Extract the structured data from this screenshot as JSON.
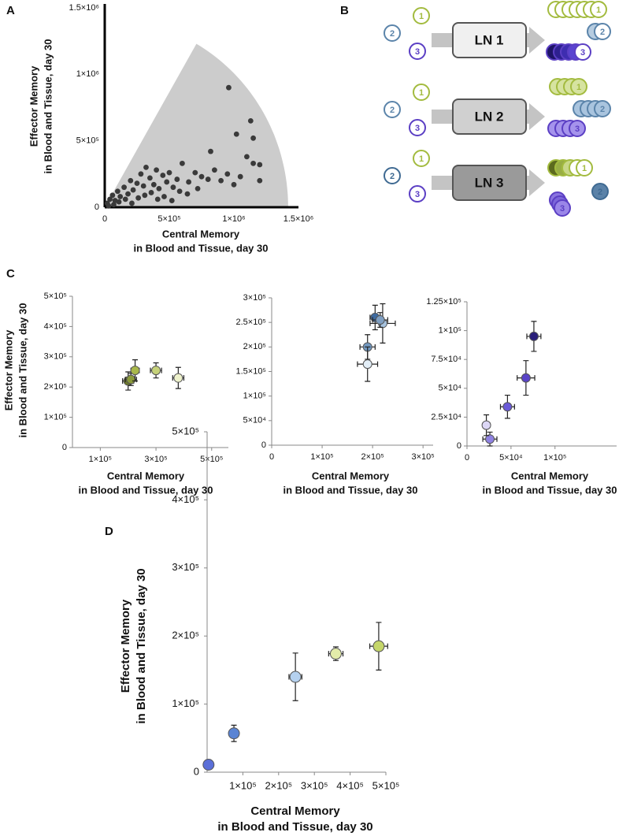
{
  "panel_labels": [
    "A",
    "B",
    "C",
    "D"
  ],
  "chart_data": [
    {
      "type": "scatter",
      "color": "#3a3a3a",
      "xlabel": [
        "Central Memory",
        "in Blood and Tissue, day 30"
      ],
      "ylabel": [
        "Effector Memory",
        "in Blood and Tissue, day 30"
      ],
      "shaded_region": {
        "radius": 1420000,
        "angle": 60,
        "color": "#cccccc"
      },
      "xlim": [
        0,
        1500000
      ],
      "ylim": [
        0,
        1500000
      ],
      "xticks": [
        0,
        {
          "value": 500000,
          "label": "5×10⁵"
        },
        {
          "value": 1000000,
          "label": "1×10⁶"
        },
        {
          "value": 1500000,
          "label": "1.5×10⁶"
        }
      ],
      "yticks": [
        0,
        {
          "value": 500000,
          "label": "5×10⁵"
        },
        {
          "value": 1000000,
          "label": "1×10⁶"
        },
        {
          "value": 1500000,
          "label": "1.5×10⁶"
        }
      ],
      "x": [
        20000,
        40000,
        60000,
        80000,
        100000,
        120000,
        150000,
        180000,
        200000,
        220000,
        250000,
        280000,
        300000,
        320000,
        350000,
        380000,
        400000,
        420000,
        450000,
        480000,
        500000,
        530000,
        560000,
        600000,
        650000,
        700000,
        750000,
        800000,
        850000,
        900000,
        950000,
        1000000,
        1050000,
        1100000,
        1150000,
        1200000,
        30000,
        70000,
        110000,
        160000,
        210000,
        260000,
        310000,
        360000,
        410000,
        460000,
        520000,
        580000,
        640000,
        720000,
        820000,
        1020000,
        1130000,
        1150000,
        960000,
        1200000
      ],
      "values": [
        30000,
        60000,
        90000,
        50000,
        120000,
        80000,
        150000,
        100000,
        200000,
        130000,
        180000,
        250000,
        160000,
        300000,
        220000,
        170000,
        280000,
        140000,
        240000,
        190000,
        260000,
        150000,
        210000,
        330000,
        190000,
        260000,
        230000,
        210000,
        280000,
        200000,
        250000,
        170000,
        230000,
        380000,
        330000,
        200000,
        10000,
        20000,
        40000,
        60000,
        30000,
        70000,
        90000,
        110000,
        60000,
        80000,
        50000,
        120000,
        100000,
        140000,
        420000,
        550000,
        650000,
        520000,
        900000,
        320000
      ]
    },
    {
      "type": "errorbar",
      "xlabel": [
        "Central Memory",
        "in Blood and Tissue, day 30"
      ],
      "ylabel": [
        "Effector Memory",
        "in Blood and Tissue, day 30"
      ],
      "xlim": [
        0,
        560000
      ],
      "ylim": [
        0,
        500000
      ],
      "xticks": [
        {
          "value": 100000,
          "label": "1×10⁵"
        },
        {
          "value": 300000,
          "label": "3×10⁵"
        },
        {
          "value": 500000,
          "label": "5×10⁵"
        }
      ],
      "yticks": [
        0,
        {
          "value": 100000,
          "label": "1×10⁵"
        },
        {
          "value": 200000,
          "label": "2×10⁵"
        },
        {
          "value": 300000,
          "label": "3×10⁵"
        },
        {
          "value": 400000,
          "label": "4×10⁵"
        },
        {
          "value": 500000,
          "label": "5×10⁵"
        }
      ],
      "series": [
        {
          "x": [
            200000,
            210000,
            225000,
            300000,
            380000
          ],
          "values": [
            220000,
            225000,
            255000,
            255000,
            230000
          ],
          "xerr": [
            20000,
            20000,
            15000,
            20000,
            20000
          ],
          "yerr": [
            30000,
            20000,
            35000,
            25000,
            35000
          ],
          "colors": [
            "#6e7a2a",
            "#8a9a3a",
            "#a9b84a",
            "#c6d27a",
            "#eef2cc"
          ]
        }
      ]
    },
    {
      "type": "errorbar",
      "xlabel": [
        "Central Memory",
        "in Blood and Tissue, day 30"
      ],
      "xlim": [
        0,
        320000
      ],
      "ylim": [
        0,
        300000
      ],
      "xticks": [
        0,
        {
          "value": 100000,
          "label": "1×10⁵"
        },
        {
          "value": 200000,
          "label": "2×10⁵"
        },
        {
          "value": 300000,
          "label": "3×10⁵"
        }
      ],
      "yticks": [
        0,
        {
          "value": 50000,
          "label": "5×10⁴"
        },
        {
          "value": 100000,
          "label": "1×10⁵"
        },
        {
          "value": 150000,
          "label": "1.5×10⁵"
        },
        {
          "value": 200000,
          "label": "2×10⁵"
        },
        {
          "value": 250000,
          "label": "2.5×10⁵"
        },
        {
          "value": 300000,
          "label": "3×10⁵"
        }
      ],
      "series": [
        {
          "x": [
            205000,
            220000,
            215000,
            190000,
            190000
          ],
          "values": [
            260000,
            248000,
            255000,
            200000,
            165000
          ],
          "xerr": [
            10000,
            25000,
            15000,
            15000,
            20000
          ],
          "yerr": [
            25000,
            40000,
            15000,
            25000,
            35000
          ],
          "colors": [
            "#3d6aa0",
            "#a7c3df",
            "#7f9fc2",
            "#7298c0",
            "#e3eef7"
          ]
        }
      ]
    },
    {
      "type": "errorbar",
      "xlabel": [
        "Central Memory",
        "in Blood and Tissue, day 30"
      ],
      "xlim": [
        0,
        170000
      ],
      "ylim": [
        0,
        125000
      ],
      "xticks": [
        0,
        {
          "value": 50000,
          "label": "5×10⁴"
        },
        {
          "value": 100000,
          "label": "1×10⁵"
        }
      ],
      "yticks": [
        0,
        {
          "value": 25000,
          "label": "2.5×10⁴"
        },
        {
          "value": 50000,
          "label": "5×10⁴"
        },
        {
          "value": 75000,
          "label": "7.5×10⁴"
        },
        {
          "value": 100000,
          "label": "1×10⁵"
        },
        {
          "value": 125000,
          "label": "1.25×10⁵"
        }
      ],
      "series": [
        {
          "x": [
            76000,
            67000,
            46000,
            26000,
            22000
          ],
          "values": [
            95000,
            59000,
            34000,
            6000,
            18000
          ],
          "xerr": [
            8000,
            10000,
            8000,
            8000,
            4000
          ],
          "yerr": [
            13000,
            15000,
            10000,
            6000,
            9000
          ],
          "colors": [
            "#2a1f7a",
            "#5a44c8",
            "#6a5ad8",
            "#8f82e2",
            "#dcd7f6"
          ]
        }
      ]
    },
    {
      "type": "errorbar",
      "xlabel": [
        "Central Memory",
        "in Blood and Tissue, day 30"
      ],
      "ylabel": [
        "Effector Memory",
        "in Blood and Tissue, day 30"
      ],
      "xlim": [
        0,
        500000
      ],
      "ylim": [
        0,
        500000
      ],
      "xticks": [
        {
          "value": 100000,
          "label": "1×10⁵"
        },
        {
          "value": 200000,
          "label": "2×10⁵"
        },
        {
          "value": 300000,
          "label": "3×10⁵"
        },
        {
          "value": 400000,
          "label": "4×10⁵"
        },
        {
          "value": 500000,
          "label": "5×10⁵"
        }
      ],
      "yticks": [
        0,
        {
          "value": 100000,
          "label": "1×10⁵"
        },
        {
          "value": 200000,
          "label": "2×10⁵"
        },
        {
          "value": 300000,
          "label": "3×10⁵"
        },
        {
          "value": 400000,
          "label": "4×10⁵"
        },
        {
          "value": 500000,
          "label": "5×10⁵"
        }
      ],
      "series": [
        {
          "x": [
            4000,
            75000,
            247000,
            360000,
            480000
          ],
          "values": [
            11000,
            57000,
            140000,
            174000,
            185000
          ],
          "xerr": [
            3000,
            8000,
            18000,
            20000,
            25000
          ],
          "yerr": [
            5000,
            12000,
            35000,
            10000,
            35000
          ],
          "colors": [
            "#5b6fd8",
            "#5a84d4",
            "#b5d1ef",
            "#e3ecaa",
            "#c5d66a"
          ]
        }
      ]
    }
  ],
  "diagram": {
    "rows": [
      {
        "box": "LN 1",
        "fill": "#f0f0f0",
        "inputs": [
          "1",
          "2",
          "3"
        ],
        "outputs": [
          {
            "label": "1",
            "color": "#a3bb3f",
            "fills": [
              "#ffffff",
              "#ffffff",
              "#ffffff",
              "#ffffff",
              "#ffffff",
              "#ffffff",
              "#ffffff"
            ]
          },
          {
            "label": "2",
            "color": "#5b84aa",
            "fills": [
              "#b6cce0",
              "#ffffff"
            ]
          },
          {
            "label": "3",
            "color": "#5b3fc4",
            "fills": [
              "#1e1466",
              "#2e2090",
              "#3e2db0",
              "#5a44d0",
              "#ffffff"
            ]
          }
        ]
      },
      {
        "box": "LN 2",
        "fill": "#d0d0d0",
        "inputs": [
          "1",
          "2",
          "3"
        ],
        "outputs": [
          {
            "label": "1",
            "color": "#a3bb3f",
            "fills": [
              "#d6e3a0",
              "#d6e3a0",
              "#d6e3a0",
              "#d6e3a0"
            ]
          },
          {
            "label": "2",
            "color": "#5b84aa",
            "fills": [
              "#a9c4de",
              "#a9c4de",
              "#a9c4de",
              "#a9c4de"
            ]
          },
          {
            "label": "3",
            "color": "#5b3fc4",
            "fills": [
              "#a593ec",
              "#a593ec",
              "#a593ec",
              "#a593ec"
            ]
          }
        ]
      },
      {
        "box": "LN 3",
        "fill": "#9a9a9a",
        "inputs": [
          "1",
          "2",
          "3"
        ],
        "outputs": [
          {
            "label": "1",
            "color": "#a3bb3f",
            "fills": [
              "#5c6a1e",
              "#98ad44",
              "#c9d889",
              "#ffffff",
              "#ffffff"
            ]
          },
          {
            "label": "2",
            "color": "#3f6a92",
            "fills": [
              "#5b82a8"
            ]
          },
          {
            "label": "3",
            "color": "#5b3fc4",
            "fills": [
              "#8a74e0",
              "#7c66da",
              "#9a86e8"
            ]
          }
        ]
      }
    ]
  }
}
